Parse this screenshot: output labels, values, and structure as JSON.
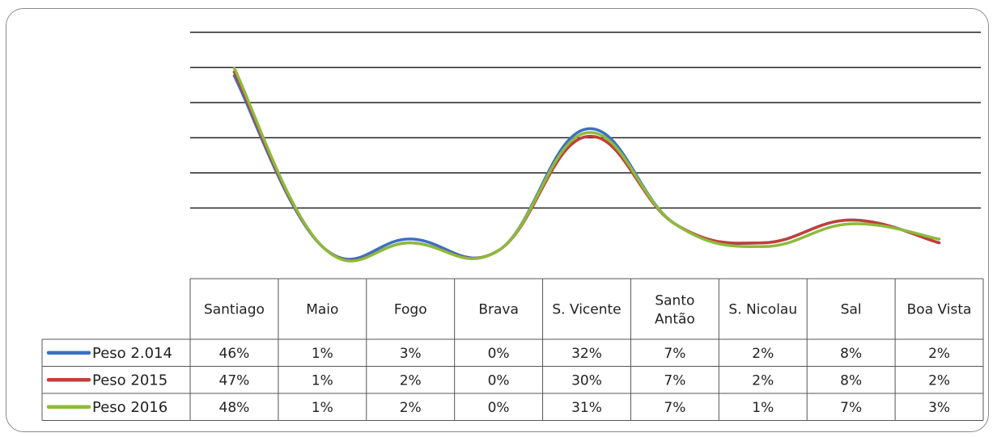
{
  "chart_data": {
    "type": "line",
    "title": "",
    "xlabel": "",
    "ylabel": "",
    "ylim": [
      0,
      0.5
    ],
    "grid": true,
    "legend": "table-left",
    "categories": [
      "Santiago",
      "Maio",
      "Fogo",
      "Brava",
      "S. Vicente",
      "Santo\nAntão",
      "S. Nicolau",
      "Sal",
      "Boa Vista"
    ],
    "series": [
      {
        "name": "Peso 2.014",
        "color": "#3b6fc4",
        "values": [
          0.46,
          0.01,
          0.03,
          0.0,
          0.32,
          0.07,
          0.02,
          0.08,
          0.02
        ],
        "labels": [
          "46%",
          "1%",
          "3%",
          "0%",
          "32%",
          "7%",
          "2%",
          "8%",
          "2%"
        ]
      },
      {
        "name": "Peso 2015",
        "color": "#c0403a",
        "values": [
          0.47,
          0.01,
          0.02,
          0.0,
          0.3,
          0.07,
          0.02,
          0.08,
          0.02
        ],
        "labels": [
          "47%",
          "1%",
          "2%",
          "0%",
          "30%",
          "7%",
          "2%",
          "8%",
          "2%"
        ]
      },
      {
        "name": "Peso 2016",
        "color": "#8dba3c",
        "values": [
          0.48,
          0.01,
          0.02,
          0.0,
          0.31,
          0.07,
          0.01,
          0.07,
          0.03
        ],
        "labels": [
          "48%",
          "1%",
          "2%",
          "0%",
          "31%",
          "7%",
          "1%",
          "7%",
          "3%"
        ]
      }
    ]
  }
}
